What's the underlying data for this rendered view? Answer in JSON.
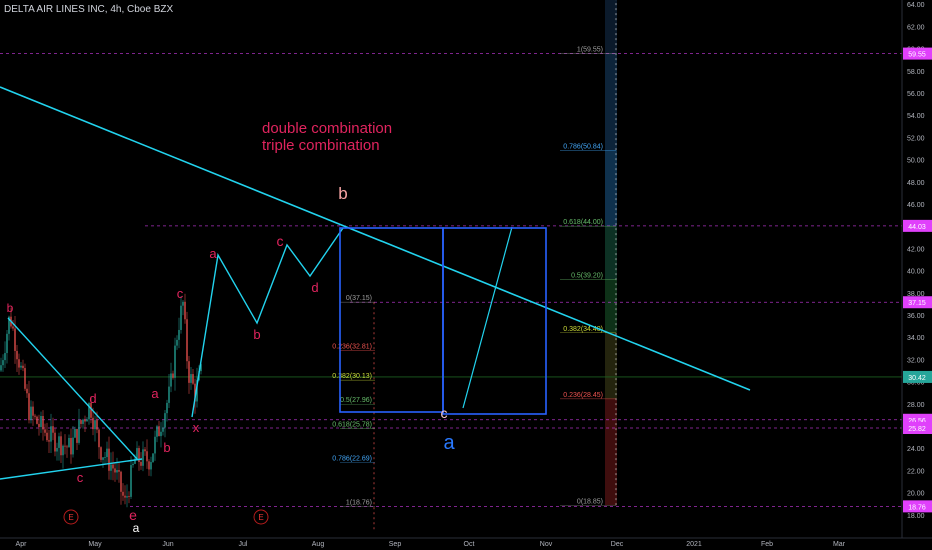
{
  "header": {
    "title": "DELTA AIR LINES INC, 4h, Cboe BZX"
  },
  "annotations": {
    "note_line1": "double combination",
    "note_line2": "triple combination"
  },
  "colors": {
    "background": "#000000",
    "trendline": "#22d3ee",
    "wave_label": "#e0245e",
    "fib_line": "#e040fb",
    "box": "#2962ff",
    "price_tag": "#e040fb",
    "last_price_tag": "#26a69a",
    "up_candle": "#26a69a",
    "down_candle": "#ef5350"
  },
  "chart_data": {
    "type": "line",
    "symbol": "DELTA AIR LINES INC",
    "interval": "4h",
    "exchange": "Cboe BZX",
    "x_tick_labels": [
      "Apr",
      "May",
      "Jun",
      "Jul",
      "Aug",
      "Sep",
      "Oct",
      "Nov",
      "Dec",
      "2021",
      "Feb",
      "Mar"
    ],
    "y_tick_labels": [
      "18.00",
      "20.00",
      "22.00",
      "24.00",
      "26.00",
      "28.00",
      "30.00",
      "32.00",
      "34.00",
      "36.00",
      "38.00",
      "40.00",
      "42.00",
      "44.00",
      "46.00",
      "48.00",
      "50.00",
      "52.00",
      "54.00",
      "56.00",
      "58.00",
      "60.00",
      "62.00",
      "64.00"
    ],
    "ylim": [
      17.0,
      65.0
    ],
    "price_tags": [
      {
        "value": "59.55",
        "color": "#e040fb"
      },
      {
        "value": "44.03",
        "color": "#e040fb"
      },
      {
        "value": "37.15",
        "color": "#e040fb"
      },
      {
        "value": "30.42",
        "color": "#26a69a"
      },
      {
        "value": "26.56",
        "color": "#e040fb"
      },
      {
        "value": "25.82",
        "color": "#e040fb"
      },
      {
        "value": "18.76",
        "color": "#e040fb"
      }
    ],
    "fib_levels_right": [
      {
        "label": "1(59.55)",
        "value": 59.55,
        "color": "#9e9e9e"
      },
      {
        "label": "0.786(50.84)",
        "value": 50.84,
        "color": "#42a5f5"
      },
      {
        "label": "0.618(44.00)",
        "value": 44.0,
        "color": "#66bb6a"
      },
      {
        "label": "0.5(39.20)",
        "value": 39.2,
        "color": "#66bb6a"
      },
      {
        "label": "0.382(34.40)",
        "value": 34.4,
        "color": "#cddc39"
      },
      {
        "label": "0.236(28.45)",
        "value": 28.45,
        "color": "#ef5350"
      },
      {
        "label": "0(18.85)",
        "value": 18.85,
        "color": "#9e9e9e"
      }
    ],
    "fib_levels_mid": [
      {
        "label": "0(37.15)",
        "value": 37.15,
        "color": "#9e9e9e"
      },
      {
        "label": "0.236(32.81)",
        "value": 32.81,
        "color": "#ef5350"
      },
      {
        "label": "0.382(30.13)",
        "value": 30.13,
        "color": "#cddc39"
      },
      {
        "label": "0.5(27.96)",
        "value": 27.96,
        "color": "#66bb6a"
      },
      {
        "label": "0.618(25.78)",
        "value": 25.78,
        "color": "#66bb6a"
      },
      {
        "label": "0.786(22.69)",
        "value": 22.69,
        "color": "#42a5f5"
      },
      {
        "label": "1(18.76)",
        "value": 18.76,
        "color": "#9e9e9e"
      }
    ],
    "wave_labels": [
      {
        "text": "b",
        "color": "#e0245e"
      },
      {
        "text": "d",
        "color": "#e0245e"
      },
      {
        "text": "c",
        "color": "#e0245e"
      },
      {
        "text": "e",
        "color": "#e0245e"
      },
      {
        "text": "a",
        "color": "#e0245e"
      },
      {
        "text": "b",
        "color": "#e0245e"
      },
      {
        "text": "c",
        "color": "#e0245e"
      },
      {
        "text": "x",
        "color": "#e0245e"
      },
      {
        "text": "a",
        "color": "#e0245e"
      },
      {
        "text": "b",
        "color": "#e0245e"
      },
      {
        "text": "c",
        "color": "#e0245e"
      },
      {
        "text": "d",
        "color": "#e0245e"
      },
      {
        "text": "b",
        "color": "#f8a5a5"
      },
      {
        "text": "c",
        "color": "#f5c6c6"
      },
      {
        "text": "a",
        "color": "#2979ff"
      }
    ],
    "event_markers": [
      {
        "text": "E"
      },
      {
        "text": "E"
      }
    ]
  }
}
